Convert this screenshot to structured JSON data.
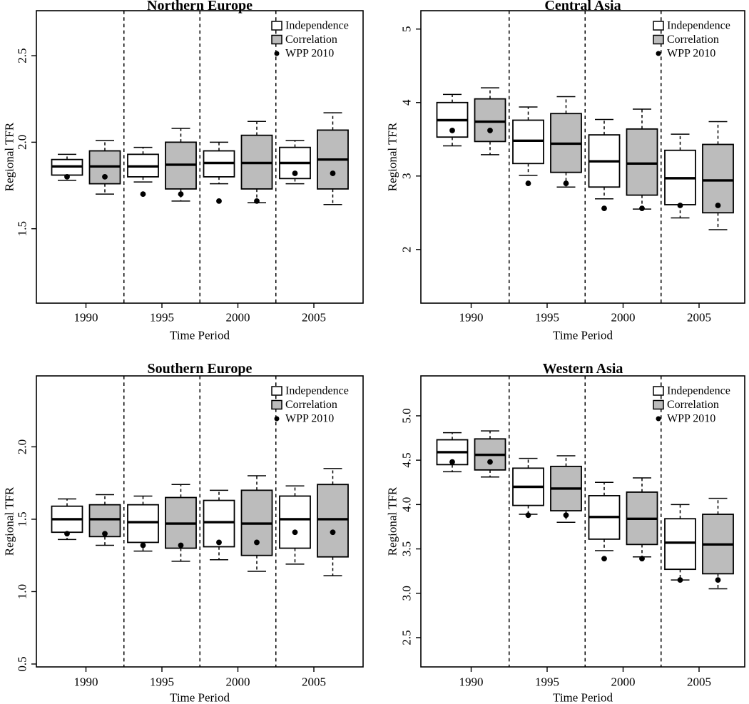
{
  "figure": {
    "background": "#ffffff",
    "stroke_color": "#000000",
    "box_value_format": [
      "low_whisker",
      "q1",
      "median",
      "q3",
      "high_whisker"
    ],
    "legend": {
      "position": "top-right",
      "items": [
        {
          "label": "Independence",
          "marker": "open-box",
          "fill": "#ffffff"
        },
        {
          "label": "Correlation",
          "marker": "gray-box",
          "fill": "#bcbcbc"
        },
        {
          "label": "WPP 2010",
          "marker": "dot",
          "fill": "#000000"
        }
      ]
    }
  },
  "chart_data": [
    {
      "type": "boxplot",
      "title": "Northern Europe",
      "xlabel": "Time Period",
      "ylabel": "Regional TFR",
      "categories": [
        "1990",
        "1995",
        "2000",
        "2005"
      ],
      "ylim": [
        1.07,
        2.76
      ],
      "ytick_values": [
        1.5,
        2.0,
        2.5
      ],
      "ytick_labels": [
        "1.5",
        "2.0",
        "2.5"
      ],
      "grid": false,
      "legend": [
        "Independence",
        "Correlation",
        "WPP 2010"
      ],
      "series": [
        {
          "name": "Independence",
          "fill": "#ffffff",
          "boxes": [
            [
              1.78,
              1.81,
              1.86,
              1.9,
              1.93
            ],
            [
              1.77,
              1.8,
              1.86,
              1.93,
              1.97
            ],
            [
              1.76,
              1.8,
              1.88,
              1.95,
              2.0
            ],
            [
              1.76,
              1.79,
              1.88,
              1.97,
              2.01
            ]
          ]
        },
        {
          "name": "Correlation",
          "fill": "#bcbcbc",
          "boxes": [
            [
              1.7,
              1.76,
              1.86,
              1.95,
              2.01
            ],
            [
              1.66,
              1.73,
              1.87,
              2.0,
              2.08
            ],
            [
              1.65,
              1.73,
              1.88,
              2.04,
              2.12
            ],
            [
              1.64,
              1.73,
              1.9,
              2.07,
              2.17
            ]
          ]
        }
      ],
      "wpp_2010": [
        1.8,
        1.7,
        1.66,
        1.82
      ]
    },
    {
      "type": "boxplot",
      "title": "Central Asia",
      "xlabel": "Time Period",
      "ylabel": "Regional TFR",
      "categories": [
        "1990",
        "1995",
        "2000",
        "2005"
      ],
      "ylim": [
        1.27,
        5.25
      ],
      "ytick_values": [
        2,
        3,
        4,
        5
      ],
      "ytick_labels": [
        "2",
        "3",
        "4",
        "5"
      ],
      "grid": false,
      "legend": [
        "Independence",
        "Correlation",
        "WPP 2010"
      ],
      "series": [
        {
          "name": "Independence",
          "fill": "#ffffff",
          "boxes": [
            [
              3.41,
              3.53,
              3.76,
              4.0,
              4.11
            ],
            [
              3.01,
              3.17,
              3.48,
              3.76,
              3.94
            ],
            [
              2.69,
              2.85,
              3.2,
              3.56,
              3.77
            ],
            [
              2.43,
              2.61,
              2.97,
              3.35,
              3.57
            ]
          ]
        },
        {
          "name": "Correlation",
          "fill": "#bcbcbc",
          "boxes": [
            [
              3.29,
              3.47,
              3.74,
              4.05,
              4.2
            ],
            [
              2.85,
              3.05,
              3.44,
              3.85,
              4.08
            ],
            [
              2.55,
              2.74,
              3.17,
              3.64,
              3.91
            ],
            [
              2.27,
              2.5,
              2.94,
              3.43,
              3.74
            ]
          ]
        }
      ],
      "wpp_2010": [
        3.62,
        2.9,
        2.56,
        2.6
      ]
    },
    {
      "type": "boxplot",
      "title": "Southern Europe",
      "xlabel": "Time Period",
      "ylabel": "Regional TFR",
      "categories": [
        "1990",
        "1995",
        "2000",
        "2005"
      ],
      "ylim": [
        0.48,
        2.49
      ],
      "ytick_values": [
        0.5,
        1.0,
        1.5,
        2.0
      ],
      "ytick_labels": [
        "0.5",
        "1.0",
        "1.5",
        "2.0"
      ],
      "grid": false,
      "legend": [
        "Independence",
        "Correlation",
        "WPP 2010"
      ],
      "series": [
        {
          "name": "Independence",
          "fill": "#ffffff",
          "boxes": [
            [
              1.36,
              1.41,
              1.5,
              1.59,
              1.64
            ],
            [
              1.28,
              1.34,
              1.48,
              1.6,
              1.66
            ],
            [
              1.22,
              1.31,
              1.48,
              1.63,
              1.7
            ],
            [
              1.19,
              1.3,
              1.5,
              1.66,
              1.73
            ]
          ]
        },
        {
          "name": "Correlation",
          "fill": "#bcbcbc",
          "boxes": [
            [
              1.32,
              1.38,
              1.5,
              1.6,
              1.67
            ],
            [
              1.21,
              1.3,
              1.47,
              1.65,
              1.74
            ],
            [
              1.14,
              1.25,
              1.47,
              1.7,
              1.8
            ],
            [
              1.11,
              1.24,
              1.5,
              1.74,
              1.85
            ]
          ]
        }
      ],
      "wpp_2010": [
        1.4,
        1.32,
        1.34,
        1.41
      ]
    },
    {
      "type": "boxplot",
      "title": "Western Asia",
      "xlabel": "Time Period",
      "ylabel": "Regional TFR",
      "categories": [
        "1990",
        "1995",
        "2000",
        "2005"
      ],
      "ylim": [
        2.17,
        5.45
      ],
      "ytick_values": [
        2.5,
        3.0,
        3.5,
        4.0,
        4.5,
        5.0
      ],
      "ytick_labels": [
        "2.5",
        "3.0",
        "3.5",
        "4.0",
        "4.5",
        "5.0"
      ],
      "grid": false,
      "legend": [
        "Independence",
        "Correlation",
        "WPP 2010"
      ],
      "series": [
        {
          "name": "Independence",
          "fill": "#ffffff",
          "boxes": [
            [
              4.37,
              4.45,
              4.59,
              4.73,
              4.81
            ],
            [
              3.89,
              3.99,
              4.2,
              4.41,
              4.52
            ],
            [
              3.48,
              3.61,
              3.86,
              4.1,
              4.25
            ],
            [
              3.15,
              3.27,
              3.57,
              3.84,
              4.0
            ]
          ]
        },
        {
          "name": "Correlation",
          "fill": "#bcbcbc",
          "boxes": [
            [
              4.31,
              4.39,
              4.56,
              4.74,
              4.83
            ],
            [
              3.8,
              3.93,
              4.18,
              4.43,
              4.55
            ],
            [
              3.41,
              3.55,
              3.84,
              4.14,
              4.3
            ],
            [
              3.05,
              3.22,
              3.55,
              3.89,
              4.07
            ]
          ]
        }
      ],
      "wpp_2010": [
        4.48,
        3.88,
        3.39,
        3.15
      ]
    }
  ]
}
